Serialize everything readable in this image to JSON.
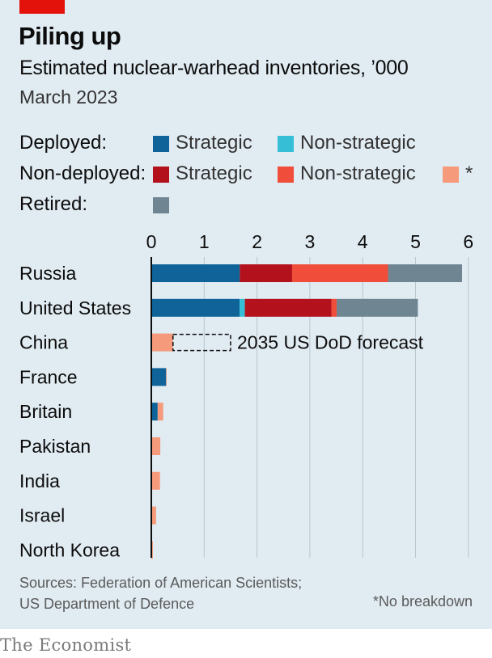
{
  "header": {
    "title": "Piling up",
    "subtitle": "Estimated nuclear-warhead inventories, ’000",
    "date": "March 2023"
  },
  "legend": {
    "deployed_label": "Deployed:",
    "nondeployed_label": "Non-deployed:",
    "retired_label": "Retired:",
    "deployed_strategic": "Strategic",
    "deployed_nonstrategic": "Non-strategic",
    "nondeployed_strategic": "Strategic",
    "nondeployed_nonstrategic": "Non-strategic",
    "no_breakdown": "*"
  },
  "colors": {
    "deployed_strategic": "#0f6399",
    "deployed_nonstrategic": "#35bed6",
    "nondeployed_strategic": "#b3111b",
    "nondeployed_nonstrategic": "#f04d3a",
    "no_breakdown": "#f59b7b",
    "retired": "#6f8592",
    "forecast_outline": "#0c0c0c"
  },
  "chart_data": {
    "type": "bar",
    "orientation": "horizontal",
    "stacked": true,
    "xlim": [
      0,
      6
    ],
    "xticks": [
      "0",
      "1",
      "2",
      "3",
      "4",
      "5",
      "6"
    ],
    "grid": true,
    "categories": [
      "Russia",
      "United States",
      "China",
      "France",
      "Britain",
      "Pakistan",
      "India",
      "Israel",
      "North Korea"
    ],
    "series": [
      {
        "name": "Deployed: Strategic",
        "key": "deployed_strategic",
        "values": [
          1.674,
          1.67,
          0,
          0.28,
          0.12,
          0,
          0,
          0,
          0
        ]
      },
      {
        "name": "Deployed: Non-strategic",
        "key": "deployed_nonstrategic",
        "values": [
          0,
          0.1,
          0,
          0,
          0,
          0,
          0,
          0,
          0
        ]
      },
      {
        "name": "Non-deployed: Strategic",
        "key": "nondeployed_strategic",
        "values": [
          0.99,
          1.638,
          0,
          0,
          0,
          0,
          0,
          0,
          0
        ]
      },
      {
        "name": "Non-deployed: Non-strategic",
        "key": "nondeployed_nonstrategic",
        "values": [
          1.816,
          0.1,
          0,
          0,
          0,
          0,
          0,
          0,
          0
        ]
      },
      {
        "name": "*",
        "key": "no_breakdown",
        "values": [
          0,
          0,
          0.41,
          0.01,
          0.105,
          0.17,
          0.164,
          0.09,
          0.03
        ]
      },
      {
        "name": "Retired",
        "key": "retired",
        "values": [
          1.4,
          1.536,
          0,
          0,
          0,
          0,
          0,
          0,
          0
        ]
      }
    ],
    "annotations": [
      {
        "category": "China",
        "type": "forecast",
        "from": 0.41,
        "to": 1.5,
        "label": "2035 US DoD forecast"
      }
    ]
  },
  "footer": {
    "source_line1": "Sources: Federation of American Scientists;",
    "source_line2": "US Department of Defence",
    "note": "*No breakdown",
    "brand": "The Economist"
  }
}
